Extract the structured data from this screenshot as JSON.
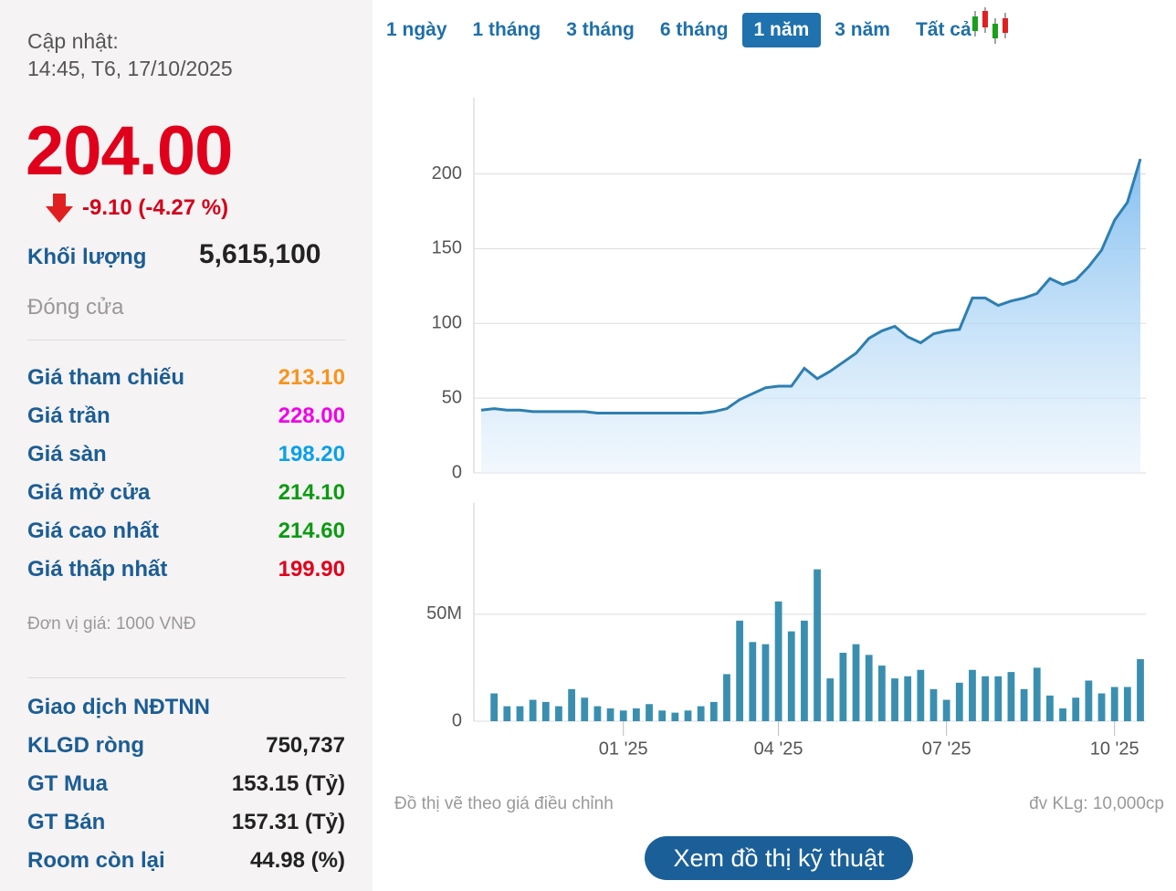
{
  "panel": {
    "update_label": "Cập nhật:",
    "update_time": "14:45, T6, 17/10/2025",
    "price": "204.00",
    "change": "-9.10 (-4.27 %)",
    "volume_label": "Khối lượng",
    "volume": "5,615,100",
    "status": "Đóng cửa",
    "rows": [
      [
        "Giá tham chiếu",
        "213.10"
      ],
      [
        "Giá trần",
        "228.00"
      ],
      [
        "Giá sàn",
        "198.20"
      ],
      [
        "Giá mở cửa",
        "214.10"
      ],
      [
        "Giá cao nhất",
        "214.60"
      ],
      [
        "Giá thấp nhất",
        "199.90"
      ]
    ],
    "unit": "Đơn vị giá: 1000 VNĐ",
    "foreign_title": "Giao dịch NĐTNN",
    "foreign_rows": [
      [
        "KLGD ròng",
        "750,737"
      ],
      [
        "GT Mua",
        "153.15 (Tỷ)"
      ],
      [
        "GT Bán",
        "157.31 (Tỷ)"
      ],
      [
        "Room còn lại",
        "44.98 (%)"
      ]
    ]
  },
  "tabs": [
    "1 ngày",
    "1 tháng",
    "3 tháng",
    "6 tháng",
    "1 năm",
    "3 năm",
    "Tất cả"
  ],
  "active_tab": 4,
  "chart_data": [
    {
      "type": "area",
      "color": "#2e7fb0",
      "categories": [
        null,
        null,
        null,
        null,
        null,
        null,
        null,
        null,
        null,
        null,
        null,
        "01 '25",
        null,
        null,
        null,
        null,
        null,
        null,
        null,
        null,
        null,
        null,
        null,
        "04 '25",
        null,
        null,
        null,
        null,
        null,
        null,
        null,
        null,
        null,
        null,
        null,
        null,
        "07 '25",
        null,
        null,
        null,
        null,
        null,
        null,
        null,
        null,
        null,
        null,
        null,
        null,
        "10 '25",
        null,
        null
      ],
      "values": [
        42,
        43,
        42,
        42,
        41,
        41,
        41,
        41,
        41,
        40,
        40,
        40,
        40,
        40,
        40,
        40,
        40,
        40,
        41,
        43,
        49,
        53,
        57,
        58,
        58,
        70,
        63,
        68,
        74,
        80,
        90,
        95,
        98,
        91,
        87,
        93,
        95,
        96,
        117,
        117,
        112,
        115,
        117,
        120,
        130,
        126,
        129,
        138,
        149,
        169,
        181,
        210
      ],
      "ylim": [
        0,
        251
      ],
      "yticks": [
        0,
        50,
        100,
        150,
        200
      ],
      "grid": true
    },
    {
      "type": "bar",
      "color": "#3a8fb0",
      "values": [
        null,
        13,
        7,
        7,
        10,
        9,
        7,
        15,
        11,
        7,
        6,
        5,
        6,
        8,
        5,
        4,
        5,
        7,
        9,
        22,
        47,
        37,
        36,
        56,
        42,
        47,
        71,
        20,
        32,
        36,
        31,
        26,
        20,
        21,
        24,
        15,
        10,
        18,
        24,
        21,
        21,
        23,
        15,
        25,
        12,
        6,
        11,
        19,
        13,
        16,
        16,
        29
      ],
      "ylim": [
        0,
        102
      ],
      "yticks": [
        0,
        {
          "value": 50,
          "label": "50M"
        }
      ],
      "grid": true
    }
  ],
  "footer": {
    "note": "Đồ thị vẽ theo giá điều chỉnh",
    "unit": "đv KLg: 10,000cp",
    "button": "Xem đồ thị kỹ thuật"
  }
}
